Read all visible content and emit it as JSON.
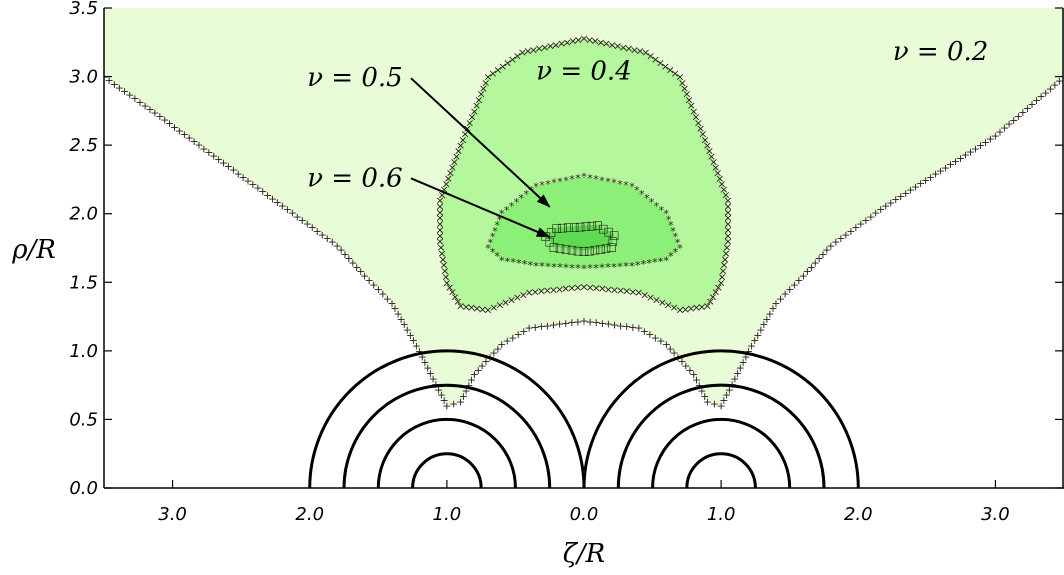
{
  "chart_data": {
    "type": "area",
    "xlabel": "ζ/R",
    "ylabel": "ρ/R",
    "xlim": [
      -3.5,
      3.5
    ],
    "ylim": [
      0.0,
      3.5
    ],
    "x_ticks": [
      -3.0,
      -2.0,
      -1.0,
      0.0,
      1.0,
      2.0,
      3.0
    ],
    "x_tick_labels": [
      "3.0",
      "2.0",
      "1.0",
      "0.0",
      "1.0",
      "2.0",
      "3.0"
    ],
    "y_ticks": [
      0.0,
      0.5,
      1.0,
      1.5,
      2.0,
      2.5,
      3.0,
      3.5
    ],
    "y_tick_labels": [
      "0.0",
      "0.5",
      "1.0",
      "1.5",
      "2.0",
      "2.5",
      "3.0",
      "3.5"
    ],
    "regions": [
      {
        "name": "ν = 0.2",
        "color": "#e8fcd8",
        "marker": "+",
        "boundary": [
          [
            -3.5,
            3.0
          ],
          [
            -3.2,
            2.79
          ],
          [
            -2.2,
            2.06
          ],
          [
            -1.8,
            1.77
          ],
          [
            -1.6,
            1.55
          ],
          [
            -1.4,
            1.35
          ],
          [
            -1.2,
            1.0
          ],
          [
            -1.0,
            0.6
          ],
          [
            -0.9,
            0.63
          ],
          [
            -0.8,
            0.83
          ],
          [
            -0.6,
            1.05
          ],
          [
            -0.4,
            1.17
          ],
          [
            0.0,
            1.22
          ],
          [
            0.4,
            1.17
          ],
          [
            0.6,
            1.05
          ],
          [
            0.8,
            0.83
          ],
          [
            0.9,
            0.63
          ],
          [
            1.0,
            0.6
          ],
          [
            1.2,
            1.0
          ],
          [
            1.4,
            1.35
          ],
          [
            1.6,
            1.55
          ],
          [
            1.8,
            1.77
          ],
          [
            2.2,
            2.06
          ],
          [
            3.0,
            2.57
          ],
          [
            3.5,
            3.0
          ],
          [
            3.5,
            3.5
          ],
          [
            -3.5,
            3.5
          ]
        ]
      },
      {
        "name": "ν = 0.4",
        "color": "#b4f79c",
        "marker": "×",
        "boundary": [
          [
            0.0,
            3.28
          ],
          [
            0.45,
            3.18
          ],
          [
            0.7,
            3.0
          ],
          [
            0.9,
            2.5
          ],
          [
            1.05,
            2.1
          ],
          [
            1.05,
            1.8
          ],
          [
            1.0,
            1.5
          ],
          [
            0.9,
            1.33
          ],
          [
            0.7,
            1.3
          ],
          [
            0.4,
            1.43
          ],
          [
            0.0,
            1.47
          ],
          [
            -0.4,
            1.43
          ],
          [
            -0.7,
            1.3
          ],
          [
            -0.9,
            1.33
          ],
          [
            -1.0,
            1.5
          ],
          [
            -1.05,
            1.8
          ],
          [
            -1.05,
            2.1
          ],
          [
            -0.9,
            2.5
          ],
          [
            -0.7,
            3.0
          ],
          [
            -0.45,
            3.18
          ]
        ]
      },
      {
        "name": "ν = 0.5",
        "color": "#8cf078",
        "marker": "*",
        "boundary": [
          [
            0.0,
            2.27
          ],
          [
            0.35,
            2.2
          ],
          [
            0.6,
            2.0
          ],
          [
            0.7,
            1.75
          ],
          [
            0.6,
            1.66
          ],
          [
            0.35,
            1.62
          ],
          [
            0.0,
            1.6
          ],
          [
            -0.35,
            1.62
          ],
          [
            -0.6,
            1.66
          ],
          [
            -0.7,
            1.75
          ],
          [
            -0.6,
            2.0
          ],
          [
            -0.35,
            2.2
          ]
        ]
      },
      {
        "name": "ν = 0.6",
        "color": "#5cdc52",
        "marker": "□",
        "boundary": [
          [
            -0.2,
            1.9
          ],
          [
            0.1,
            1.92
          ],
          [
            0.22,
            1.85
          ],
          [
            0.2,
            1.76
          ],
          [
            0.0,
            1.73
          ],
          [
            -0.22,
            1.76
          ],
          [
            -0.28,
            1.84
          ]
        ]
      }
    ],
    "semicircle_centers": [
      -1.0,
      1.0
    ],
    "semicircle_radii": [
      0.25,
      0.5,
      0.75,
      1.0
    ],
    "annotations": [
      {
        "text": "ν = 0.2",
        "x": 2.6,
        "y": 3.12
      },
      {
        "text": "ν = 0.4",
        "x": 0.0,
        "y": 2.98
      },
      {
        "text": "ν = 0.5",
        "x": -1.67,
        "y": 2.93,
        "arrow_to": [
          -0.25,
          2.05
        ]
      },
      {
        "text": "ν = 0.6",
        "x": -1.67,
        "y": 2.2,
        "arrow_to": [
          -0.25,
          1.83
        ]
      }
    ],
    "grid": false,
    "legend": "none"
  }
}
